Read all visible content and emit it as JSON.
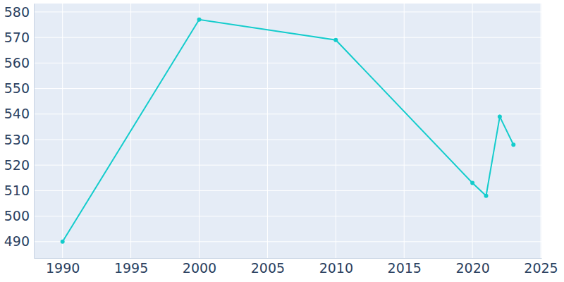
{
  "chart_data": {
    "type": "line",
    "x": [
      1990,
      2000,
      2010,
      2020,
      2021,
      2022,
      2023
    ],
    "values": [
      490,
      577,
      569,
      513,
      508,
      539,
      528
    ],
    "color": "#13cccc",
    "marker": "circle",
    "xlim": [
      1987.9,
      2025.05
    ],
    "ylim": [
      483.6,
      583.3
    ],
    "xticks": [
      1990,
      1995,
      2000,
      2005,
      2010,
      2015,
      2020,
      2025
    ],
    "yticks": [
      490,
      500,
      510,
      520,
      530,
      540,
      550,
      560,
      570,
      580
    ],
    "grid": true
  }
}
